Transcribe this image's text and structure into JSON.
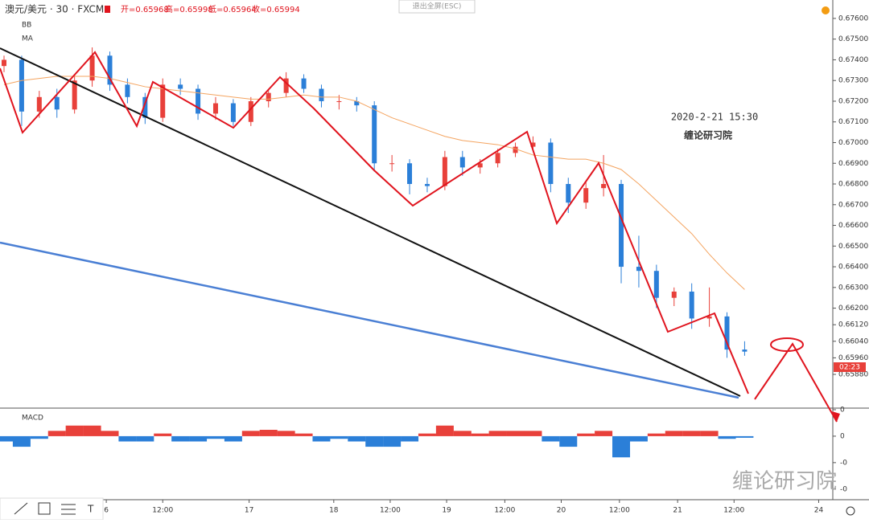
{
  "chart_data": {
    "type": "candlestick",
    "header": {
      "symbol": "澳元/美元 · 30 · FXCM",
      "open": "开=0.65968",
      "high": "高=0.65998",
      "low": "低=0.65964",
      "close": "收=0.65994"
    },
    "exit_button": "退出全屏(ESC)",
    "indicator_bb": "BB",
    "indicator_ma": "MA",
    "macd_label": "MACD",
    "annotation_date": "2020-2-21 15:30",
    "annotation_source": "缠论研习院",
    "watermark": "缠论研习院",
    "price_tag": "02:23",
    "up_color": "#e8403a",
    "down_color": "#2b7fd8",
    "ma_color": "#f4a460",
    "x": [
      0,
      10,
      20,
      30,
      40,
      50,
      60,
      70,
      80,
      90,
      100,
      110,
      120,
      130,
      140,
      150,
      160,
      170,
      180,
      190,
      200,
      210,
      220,
      230,
      240,
      250,
      260,
      270,
      280,
      290,
      300,
      310,
      320,
      330,
      340,
      350,
      360,
      370,
      380,
      390,
      400,
      410,
      420
    ],
    "open": [
      0.6737,
      0.674,
      0.6715,
      0.6722,
      0.6716,
      0.673,
      0.6742,
      0.6728,
      0.6722,
      0.6712,
      0.6728,
      0.6726,
      0.6714,
      0.6719,
      0.671,
      0.672,
      0.6724,
      0.6731,
      0.6726,
      0.672,
      0.672,
      0.6718,
      0.669,
      0.669,
      0.668,
      0.6679,
      0.6693,
      0.6688,
      0.669,
      0.6695,
      0.6698,
      0.67,
      0.668,
      0.6671,
      0.6678,
      0.668,
      0.664,
      0.6638,
      0.6625,
      0.6628,
      0.6615,
      0.6616,
      0.66
    ],
    "high": [
      0.6742,
      0.6742,
      0.6725,
      0.6726,
      0.6733,
      0.6746,
      0.6744,
      0.6731,
      0.6724,
      0.6731,
      0.6731,
      0.6728,
      0.6722,
      0.6721,
      0.6722,
      0.6726,
      0.6734,
      0.6733,
      0.6728,
      0.6723,
      0.6722,
      0.672,
      0.6694,
      0.6692,
      0.6683,
      0.6696,
      0.6696,
      0.6692,
      0.6697,
      0.67,
      0.6703,
      0.6702,
      0.6683,
      0.6681,
      0.6694,
      0.6682,
      0.6655,
      0.6641,
      0.663,
      0.6632,
      0.663,
      0.6618,
      0.6604
    ],
    "low": [
      0.6734,
      0.6708,
      0.6712,
      0.6712,
      0.6714,
      0.6727,
      0.6725,
      0.6719,
      0.6709,
      0.671,
      0.6723,
      0.6711,
      0.6711,
      0.6708,
      0.6708,
      0.6717,
      0.6722,
      0.6724,
      0.6717,
      0.6716,
      0.6715,
      0.6686,
      0.6686,
      0.6675,
      0.6676,
      0.6677,
      0.6684,
      0.6685,
      0.6688,
      0.6693,
      0.6696,
      0.6676,
      0.6666,
      0.6668,
      0.6674,
      0.6632,
      0.663,
      0.662,
      0.6621,
      0.661,
      0.6611,
      0.6596,
      0.6597
    ],
    "close": [
      0.674,
      0.6715,
      0.6722,
      0.6716,
      0.673,
      0.6742,
      0.6728,
      0.6722,
      0.6712,
      0.6728,
      0.6726,
      0.6714,
      0.6719,
      0.671,
      0.672,
      0.6724,
      0.6731,
      0.6726,
      0.672,
      0.672,
      0.6718,
      0.669,
      0.669,
      0.668,
      0.6679,
      0.6693,
      0.6688,
      0.669,
      0.6695,
      0.6698,
      0.67,
      0.668,
      0.6671,
      0.6678,
      0.668,
      0.664,
      0.6638,
      0.6625,
      0.6628,
      0.6615,
      0.6616,
      0.66,
      0.6599
    ],
    "ma": [
      0.6728,
      0.673,
      0.6731,
      0.6732,
      0.6732,
      0.6732,
      0.6731,
      0.6729,
      0.6727,
      0.6726,
      0.6725,
      0.6724,
      0.6723,
      0.6722,
      0.6721,
      0.6721,
      0.6722,
      0.6723,
      0.6722,
      0.6722,
      0.672,
      0.6716,
      0.6712,
      0.6709,
      0.6706,
      0.6703,
      0.6701,
      0.67,
      0.6699,
      0.6697,
      0.6694,
      0.6693,
      0.6692,
      0.6692,
      0.669,
      0.6687,
      0.668,
      0.6672,
      0.6664,
      0.6656,
      0.6646,
      0.6637,
      0.6629
    ],
    "macd_hist": [
      -0.0001,
      -0.0002,
      -5e-05,
      0.0001,
      0.0002,
      0.0002,
      0.0001,
      -0.0001,
      -0.0001,
      5e-05,
      -0.0001,
      -0.0001,
      -5e-05,
      -0.0001,
      0.0001,
      0.00012,
      0.0001,
      5e-05,
      -0.0001,
      -5e-05,
      -0.0001,
      -0.0002,
      -0.0002,
      -0.0001,
      5e-05,
      0.0002,
      0.0001,
      5e-05,
      0.0001,
      0.0001,
      0.0001,
      -0.0001,
      -0.0002,
      5e-05,
      0.0001,
      -0.0004,
      -0.0001,
      5e-05,
      0.0001,
      0.0001,
      0.0001,
      -5e-05,
      -3e-05
    ],
    "xlim": [
      0,
      470
    ],
    "xticks": [
      {
        "value": 58,
        "label": "6"
      },
      {
        "value": 90,
        "label": "12:00"
      },
      {
        "value": 139,
        "label": "17"
      },
      {
        "value": 187,
        "label": "18"
      },
      {
        "value": 219,
        "label": "12:00"
      },
      {
        "value": 251,
        "label": "19"
      },
      {
        "value": 284,
        "label": "12:00"
      },
      {
        "value": 316,
        "label": "20"
      },
      {
        "value": 349,
        "label": "12:00"
      },
      {
        "value": 382,
        "label": "21"
      },
      {
        "value": 414,
        "label": "12:00"
      },
      {
        "value": 462,
        "label": "24"
      }
    ],
    "ylim": [
      0.65717,
      0.67689
    ],
    "yticks": [
      {
        "value": 0.676,
        "label": "0.67600"
      },
      {
        "value": 0.675,
        "label": "0.67500"
      },
      {
        "value": 0.674,
        "label": "0.67400"
      },
      {
        "value": 0.673,
        "label": "0.67300"
      },
      {
        "value": 0.672,
        "label": "0.67200"
      },
      {
        "value": 0.671,
        "label": "0.67100"
      },
      {
        "value": 0.67,
        "label": "0.67000"
      },
      {
        "value": 0.669,
        "label": "0.66900"
      },
      {
        "value": 0.668,
        "label": "0.66800"
      },
      {
        "value": 0.667,
        "label": "0.66700"
      },
      {
        "value": 0.666,
        "label": "0.66600"
      },
      {
        "value": 0.665,
        "label": "0.66500"
      },
      {
        "value": 0.664,
        "label": "0.66400"
      },
      {
        "value": 0.663,
        "label": "0.66300"
      },
      {
        "value": 0.662,
        "label": "0.66200"
      },
      {
        "value": 0.6612,
        "label": "0.66120"
      },
      {
        "value": 0.6604,
        "label": "0.66040"
      },
      {
        "value": 0.6596,
        "label": "0.65960"
      },
      {
        "value": 0.6588,
        "label": "0.65880"
      }
    ],
    "y2lim": [
      -0.00117,
      0.00053
    ],
    "y2ticks": [
      {
        "value": 0.0005,
        "label": "0"
      },
      {
        "value": 0,
        "label": "0"
      },
      {
        "value": -0.0005,
        "label": "-0"
      },
      {
        "value": -0.001,
        "label": "-0"
      }
    ]
  }
}
